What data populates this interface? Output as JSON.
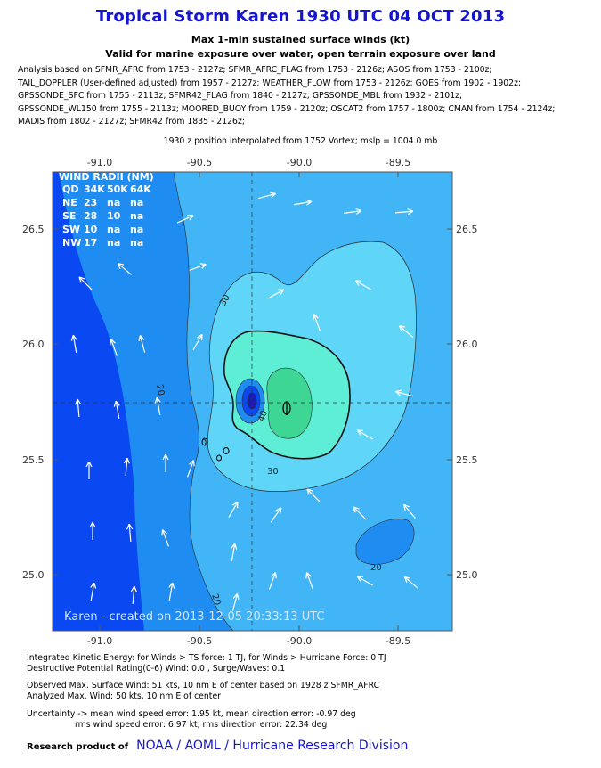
{
  "header": {
    "title": "Tropical Storm Karen 1930 UTC 04 OCT 2013",
    "subtitle1": "Max 1-min sustained surface winds (kt)",
    "subtitle2": "Valid for marine exposure over water, open terrain exposure over land"
  },
  "analysis_lines": [
    "Analysis based on SFMR_AFRC from 1753 - 2127z; SFMR_AFRC_FLAG from 1753 - 2126z; ASOS from 1753 - 2100z;",
    "TAIL_DOPPLER (User-defined adjusted) from 1957 - 2127z; WEATHER_FLOW from 1753 - 2126z; GOES from 1902 - 1902z;",
    "GPSSONDE_SFC from 1755 - 2113z; SFMR42_FLAG from 1840 - 2127z; GPSSONDE_MBL from 1932 - 2101z;",
    "GPSSONDE_WL150 from 1755 - 2113z; MOORED_BUOY from 1759 - 2120z; OSCAT2 from 1757 - 1800z; CMAN from 1754 - 2124z;",
    "MADIS from 1802 - 2127z; SFMR42 from 1835 - 2126z;"
  ],
  "interp_line": "1930 z position interpolated from 1752 Vortex; mslp = 1004.0 mb",
  "map": {
    "lon_ticks": [
      "-91.0",
      "-90.5",
      "-90.0",
      "-89.5"
    ],
    "lat_ticks": [
      "26.5",
      "26.0",
      "25.5",
      "25.0"
    ],
    "wind_radii": {
      "title": "WIND RADII (NM)",
      "header": [
        "QD",
        "34K",
        "50K",
        "64K"
      ],
      "rows": [
        [
          "NE",
          "23",
          "na",
          "na"
        ],
        [
          "SE",
          "28",
          "10",
          "na"
        ],
        [
          "SW",
          "10",
          "na",
          "na"
        ],
        [
          "NW",
          "17",
          "na",
          "na"
        ]
      ]
    },
    "contour_labels": [
      "30",
      "20",
      "30",
      "20",
      "20",
      "40",
      "0"
    ],
    "watermark": "Karen  -  created on 2013-12-05 20:33:13 UTC",
    "colors": {
      "dark_blue": "#0a49f2",
      "medium_blue": "#1f8cf2",
      "light_blue": "#41b5f5",
      "cyan": "#5fd6f8",
      "aqua": "#5eeed6",
      "green": "#3ed695",
      "arrow": "#ffffff"
    }
  },
  "footer": {
    "ike": "Integrated Kinetic Energy: for Winds > TS force: 1 TJ, for Winds > Hurricane Force: 0 TJ",
    "dpr": "Destructive Potential Rating(0-6)   Wind: 0.0 , Surge/Waves: 0.1",
    "observed": "Observed Max. Surface Wind: 51 kts, 10 nm E of center based on 1928 z SFMR_AFRC",
    "analyzed": "Analyzed Max. Wind: 50 kts, 10 nm  E of center",
    "uncertainty1": "Uncertainty -> mean wind speed error: 1.95 kt, mean direction error:  -0.97 deg",
    "uncertainty2": "rms wind speed error: 6.97 kt, rms direction error: 22.34 deg",
    "credit_label": "Research product of",
    "credit_org": "NOAA  /  AOML  /  Hurricane Research Division"
  }
}
